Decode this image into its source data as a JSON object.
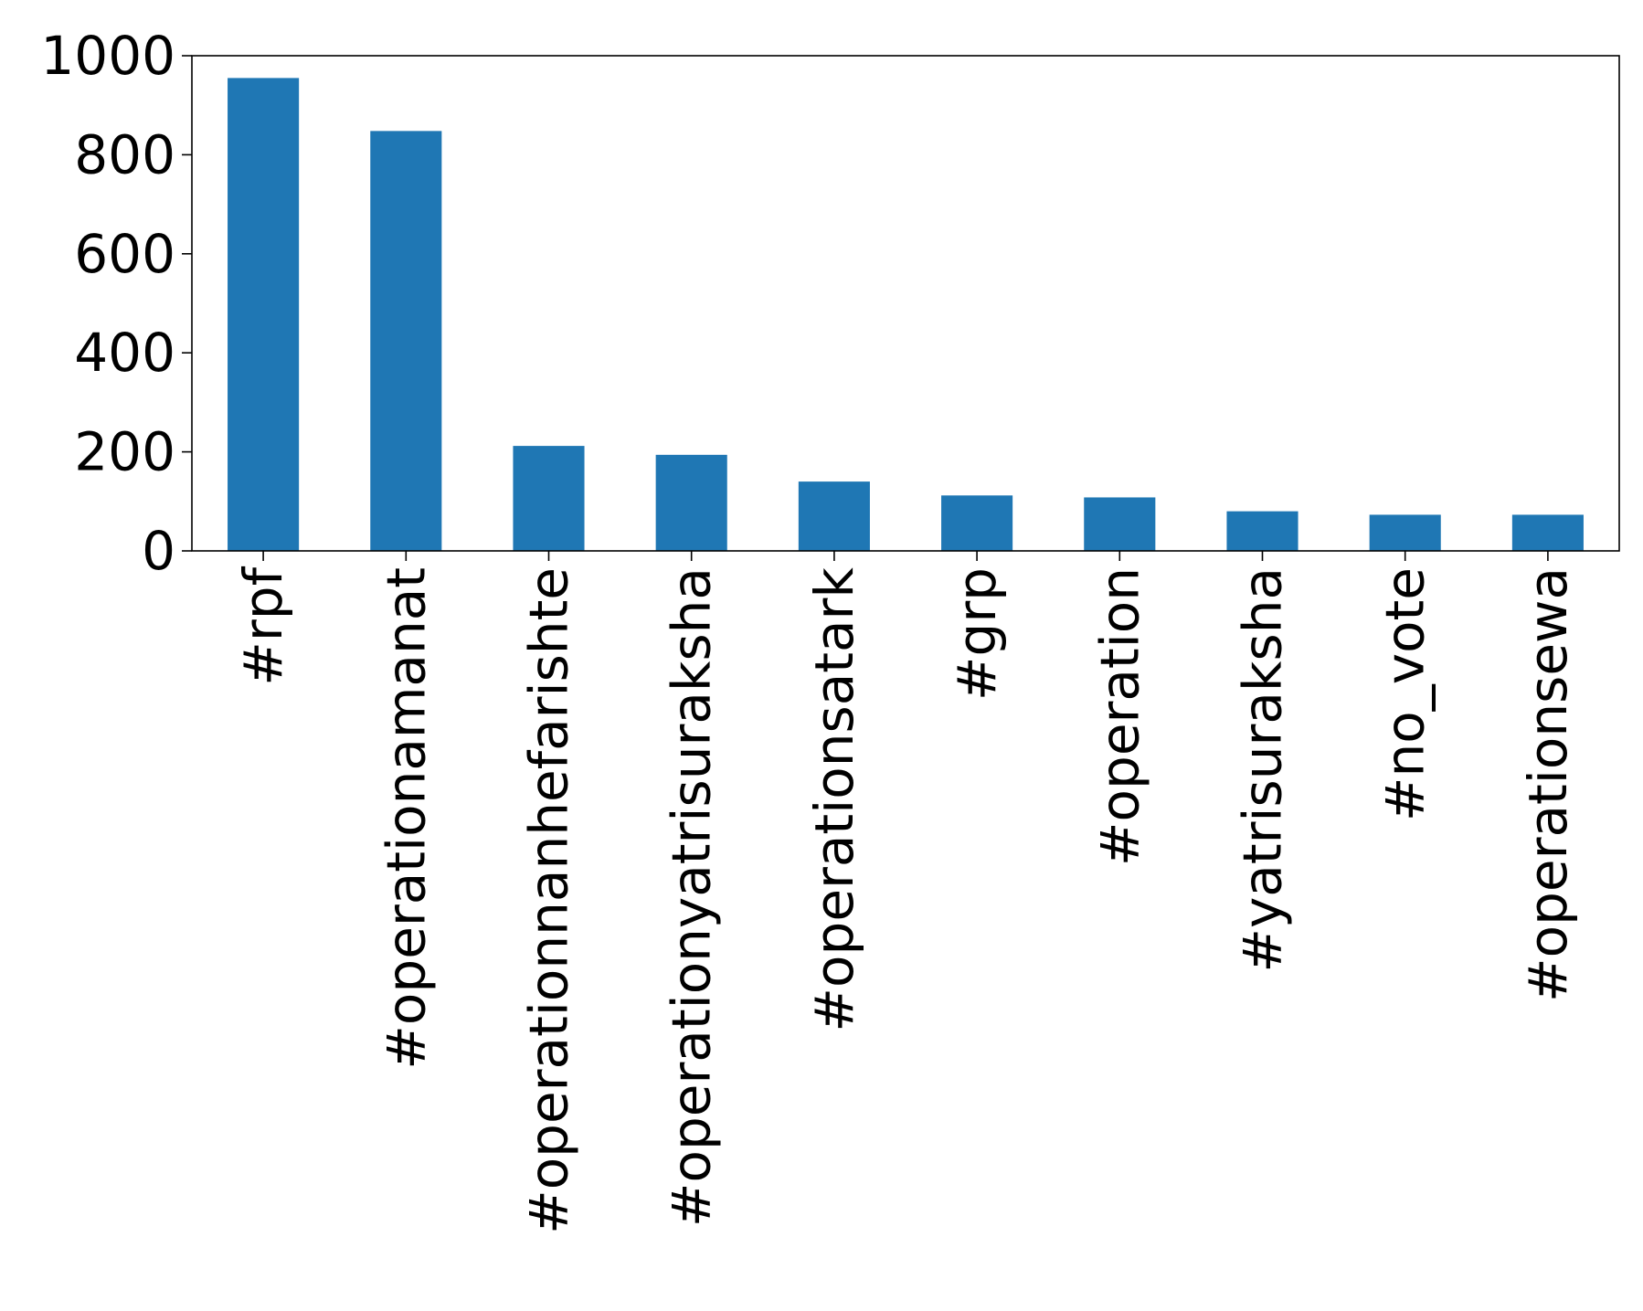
{
  "chart_data": {
    "type": "bar",
    "title": "",
    "xlabel": "",
    "ylabel": "",
    "categories": [
      "#rpf",
      "#operationamanat",
      "#operationnanhefarishte",
      "#operationyatrisuraksha",
      "#operationsatark",
      "#grp",
      "#operation",
      "#yatrisuraksha",
      "#no_vote",
      "#operationsewa"
    ],
    "values": [
      955,
      848,
      212,
      194,
      140,
      112,
      108,
      80,
      73,
      73
    ],
    "ylim": [
      0,
      1000
    ],
    "yticks": [
      "0",
      "200",
      "400",
      "600",
      "800",
      "1000"
    ],
    "ytick_values": [
      0,
      200,
      400,
      600,
      800,
      1000
    ],
    "grid": false,
    "legend": "none",
    "bar_color": "#1f77b4"
  }
}
